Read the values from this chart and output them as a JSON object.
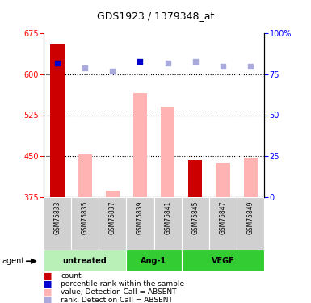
{
  "title": "GDS1923 / 1379348_at",
  "samples": [
    "GSM75833",
    "GSM75835",
    "GSM75837",
    "GSM75839",
    "GSM75841",
    "GSM75845",
    "GSM75847",
    "GSM75849"
  ],
  "bar_values": [
    655,
    453,
    386,
    565,
    540,
    443,
    437,
    447
  ],
  "bar_colors": [
    "#cc0000",
    "#ffb3b3",
    "#ffb3b3",
    "#ffb3b3",
    "#ffb3b3",
    "#cc0000",
    "#ffb3b3",
    "#ffb3b3"
  ],
  "rank_values": [
    82,
    79,
    77,
    83,
    82,
    83,
    80,
    80
  ],
  "rank_colors": [
    "#0000cc",
    "#aaaadd",
    "#aaaadd",
    "#0000cc",
    "#aaaadd",
    "#aaaadd",
    "#aaaadd",
    "#aaaadd"
  ],
  "ymin": 375,
  "ymax": 675,
  "yticks": [
    375,
    450,
    525,
    600,
    675
  ],
  "right_yticks": [
    0,
    25,
    50,
    75,
    100
  ],
  "grid_lines": [
    450,
    525,
    600
  ],
  "group_info": [
    {
      "name": "untreated",
      "start": 0,
      "end": 2,
      "color": "#b8f0b8"
    },
    {
      "name": "Ang-1",
      "start": 3,
      "end": 4,
      "color": "#33cc33"
    },
    {
      "name": "VEGF",
      "start": 5,
      "end": 7,
      "color": "#33cc33"
    }
  ],
  "legend_items": [
    {
      "color": "#cc0000",
      "label": "count"
    },
    {
      "color": "#0000cc",
      "label": "percentile rank within the sample"
    },
    {
      "color": "#ffb3b3",
      "label": "value, Detection Call = ABSENT"
    },
    {
      "color": "#aaaadd",
      "label": "rank, Detection Call = ABSENT"
    }
  ],
  "bar_width": 0.5,
  "title_fontsize": 9,
  "axis_fontsize": 7,
  "sample_fontsize": 5.5,
  "group_fontsize": 7,
  "legend_fontsize": 6.5
}
